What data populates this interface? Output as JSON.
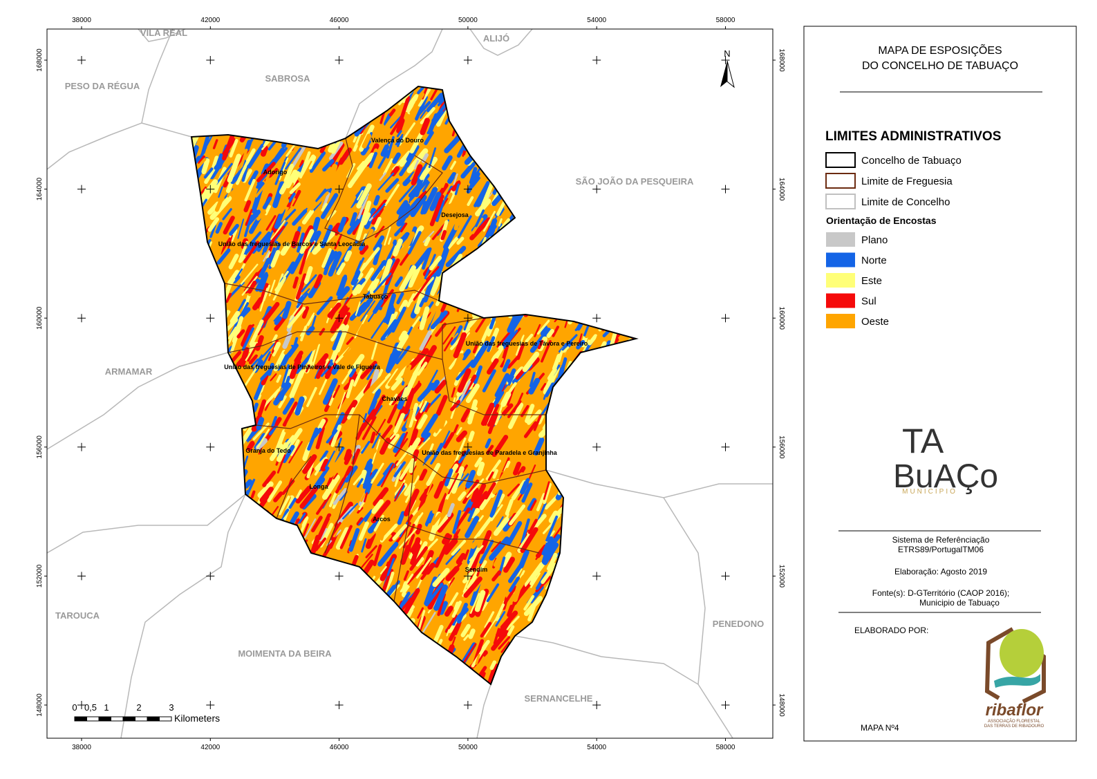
{
  "map": {
    "xticks": [
      38000,
      42000,
      46000,
      50000,
      54000,
      58000
    ],
    "yticks": [
      148000,
      152000,
      156000,
      160000,
      164000,
      168000
    ],
    "neighbors": [
      "VILA REAL",
      "ALIJÓ",
      "PESO DA RÉGUA",
      "SABROSA",
      "SÃO JOÃO DA PESQUEIRA",
      "ARMAMAR",
      "TAROUCA",
      "MOIMENTA DA BEIRA",
      "PENEDONO",
      "SERNANCELHE"
    ],
    "parishes": [
      "Valença do Douro",
      "Adorigo",
      "Desejosa",
      "União das freguesias de Barcos e Santa Leocádia",
      "Tabuaço",
      "União das freguesias de Távora e Pereiro",
      "União das freguesias de Pinheiros e Vale de Figueira",
      "Chavães",
      "União das freguesias de Paradela e Granjinha",
      "Granja do Tedo",
      "Longa",
      "Arcos",
      "Sendim"
    ],
    "north": "N",
    "scale_bar": {
      "labels": [
        "0",
        "0,5",
        "1",
        "2",
        "3"
      ],
      "unit": "Kilometers"
    }
  },
  "panel": {
    "title_lines": [
      "MAPA DE ESPOSIÇÕES",
      "DO CONCELHO DE TABUAÇO"
    ],
    "admin_heading": "LIMITES ADMINISTRATIVOS",
    "admin_items": [
      {
        "label": "Concelho de Tabuaço",
        "color": "#000000"
      },
      {
        "label": "Limite de Freguesia",
        "color": "#6b2a10"
      },
      {
        "label": "Limite de Concelho",
        "color": "#c0c0c0"
      }
    ],
    "aspect_heading": "Orientação de Encostas",
    "aspect_items": [
      {
        "label": "Plano",
        "color": "#c8c8c8"
      },
      {
        "label": "Norte",
        "color": "#1464e6"
      },
      {
        "label": "Este",
        "color": "#ffff78"
      },
      {
        "label": "Sul",
        "color": "#f50a0a"
      },
      {
        "label": "Oeste",
        "color": "#ffa500"
      }
    ],
    "logo": {
      "line1": "TA",
      "line2": "BuAÇo",
      "line3": "MUNICIPIO"
    },
    "reference_lines": [
      "Sistema de Referênciação",
      "ETRS89/PortugalTM06"
    ],
    "date": "Elaboração: Agosto 2019",
    "sources": [
      "Fonte(s): D-GTerritório (CAOP 2016);",
      "Municipio de Tabuaço"
    ],
    "author_label": "ELABORADO POR:",
    "ribaflor": {
      "name": "ribaflor",
      "tagline1": "ASSOCIAÇÃO FLORESTAL",
      "tagline2": "DAS TERRAS DE RIBADOURO"
    },
    "map_number": "MAPA Nº4"
  }
}
